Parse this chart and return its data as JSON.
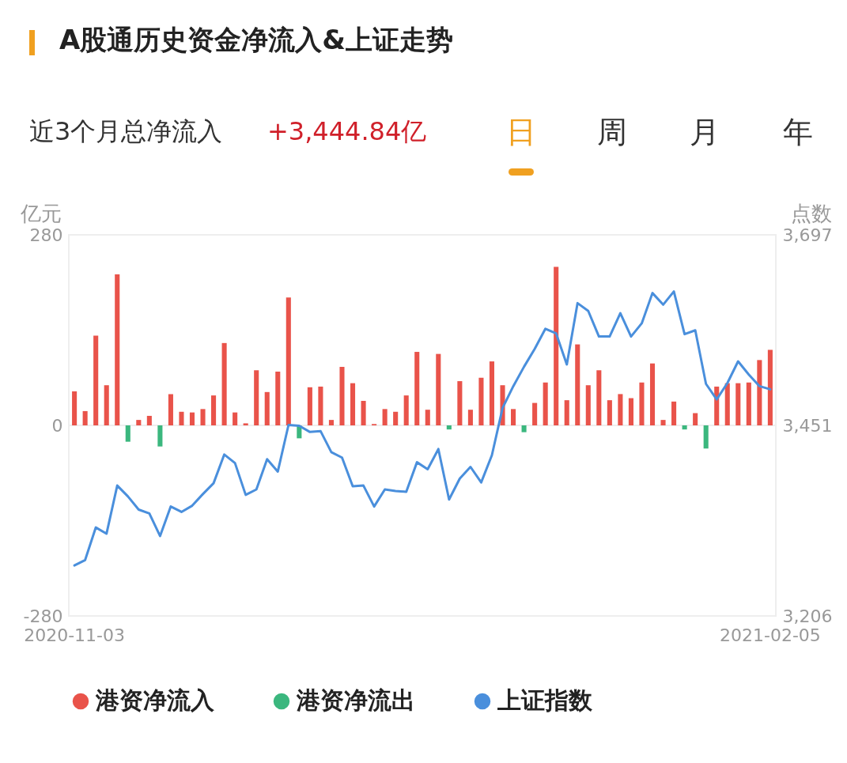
{
  "chart_data": {
    "type": "bar",
    "title": "A股通历史资金净流入&上证走势",
    "annotations": [
      "近3个月总净流入",
      "+3,444.84亿",
      "日",
      "周",
      "月",
      "年"
    ],
    "ylabel": "亿元",
    "y2label": "点数",
    "categories": [
      "2020-11-03",
      null,
      null,
      null,
      null,
      null,
      null,
      null,
      null,
      null,
      null,
      null,
      null,
      null,
      null,
      null,
      null,
      null,
      null,
      null,
      null,
      null,
      null,
      null,
      null,
      null,
      null,
      null,
      null,
      null,
      null,
      null,
      null,
      null,
      null,
      null,
      null,
      null,
      null,
      null,
      null,
      null,
      null,
      null,
      null,
      null,
      null,
      null,
      null,
      null,
      null,
      null,
      null,
      null,
      null,
      null,
      null,
      null,
      null,
      null,
      null,
      null,
      null,
      null,
      null,
      "2021-02-05"
    ],
    "series": [
      {
        "name": "港资净流入",
        "color": "#e9534a",
        "values": [
          50,
          21,
          132,
          59,
          222,
          null,
          8,
          14,
          null,
          46,
          20,
          19,
          24,
          44,
          121,
          19,
          3,
          81,
          49,
          79,
          188,
          null,
          56,
          57,
          8,
          86,
          62,
          36,
          2,
          24,
          20,
          44,
          108,
          23,
          105,
          null,
          65,
          23,
          70,
          94,
          59,
          24,
          null,
          33,
          63,
          233,
          37,
          119,
          59,
          81,
          37,
          46,
          40,
          63,
          91,
          8,
          35,
          null,
          18,
          null,
          57,
          62,
          62,
          63,
          96,
          111
        ]
      },
      {
        "name": "港资净流出",
        "color": "#3bb77e",
        "values": [
          null,
          null,
          null,
          null,
          null,
          -24,
          null,
          null,
          -31,
          null,
          null,
          null,
          null,
          null,
          null,
          null,
          null,
          null,
          null,
          null,
          null,
          -19,
          null,
          null,
          null,
          null,
          null,
          null,
          null,
          null,
          null,
          null,
          null,
          null,
          null,
          -6,
          null,
          null,
          null,
          null,
          null,
          null,
          -10,
          null,
          null,
          null,
          null,
          null,
          null,
          null,
          null,
          null,
          null,
          null,
          null,
          null,
          null,
          -6,
          null,
          -34,
          null,
          null,
          null,
          null,
          null,
          null
        ]
      },
      {
        "name": "上证指数",
        "type": "line",
        "axis": "y2",
        "color": "#4a8fdc",
        "values": [
          3271,
          3278,
          3320,
          3312,
          3374,
          3360,
          3343,
          3338,
          3309,
          3347,
          3340,
          3348,
          3363,
          3377,
          3414,
          3403,
          3362,
          3369,
          3408,
          3392,
          3452,
          3451,
          3443,
          3444,
          3417,
          3410,
          3373,
          3374,
          3347,
          3369,
          3367,
          3366,
          3404,
          3395,
          3421,
          3356,
          3383,
          3398,
          3378,
          3413,
          3474,
          3502,
          3527,
          3550,
          3576,
          3570,
          3530,
          3609,
          3599,
          3566,
          3566,
          3596,
          3566,
          3583,
          3622,
          3607,
          3624,
          3569,
          3574,
          3505,
          3485,
          3506,
          3534,
          3517,
          3502,
          3498
        ]
      }
    ],
    "ylim": [
      -280,
      280
    ],
    "yticks": [
      -280,
      0,
      280
    ],
    "y2lim": [
      3206,
      3697
    ],
    "y2ticks": [
      {
        "value": 3206,
        "label": "3,206"
      },
      {
        "value": 3451,
        "label": "3,451"
      },
      {
        "value": 3697,
        "label": "3,697"
      }
    ],
    "ref_lines": [
      {
        "axis": "y",
        "value": 0,
        "color": "#eeeeee"
      }
    ],
    "grid": false,
    "legend": "bottom"
  }
}
